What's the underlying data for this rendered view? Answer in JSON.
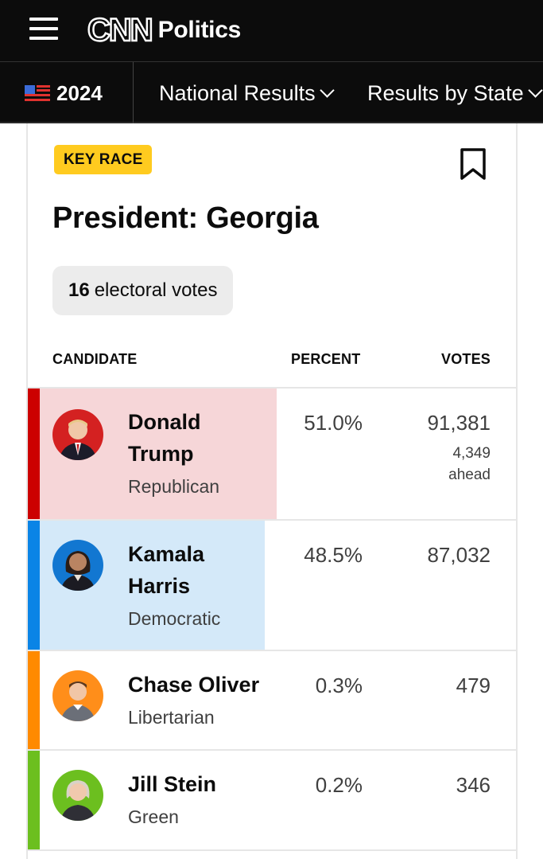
{
  "header": {
    "logo_text": "CNN",
    "section": "Politics"
  },
  "nav": {
    "year": "2024",
    "items": [
      {
        "label": "National Results"
      },
      {
        "label": "Results by State"
      }
    ]
  },
  "race": {
    "badge": "KEY RACE",
    "title": "President: Georgia",
    "electoral_votes": "16",
    "electoral_votes_label": "electoral votes"
  },
  "table": {
    "headers": {
      "candidate": "CANDIDATE",
      "percent": "PERCENT",
      "votes": "VOTES"
    },
    "rows": [
      {
        "first": "Donald",
        "last": "Trump",
        "party": "Republican",
        "percent": "51.0%",
        "votes": "91,381",
        "ahead_count": "4,349",
        "ahead_label": "ahead",
        "party_color": "#cc0000",
        "fill_color": "#f6d6d8",
        "avatar_color": "#d42121"
      },
      {
        "first": "Kamala",
        "last": "Harris",
        "party": "Democratic",
        "percent": "48.5%",
        "votes": "87,032",
        "party_color": "#0a84e6",
        "fill_color": "#d4e9f9",
        "avatar_color": "#1277d1"
      },
      {
        "name": "Chase Oliver",
        "party": "Libertarian",
        "percent": "0.3%",
        "votes": "479",
        "party_color": "#ff8a00",
        "avatar_color": "#ff8e1a"
      },
      {
        "name": "Jill Stein",
        "party": "Green",
        "percent": "0.2%",
        "votes": "346",
        "party_color": "#6cbf1f",
        "avatar_color": "#6cbf1f"
      }
    ]
  }
}
